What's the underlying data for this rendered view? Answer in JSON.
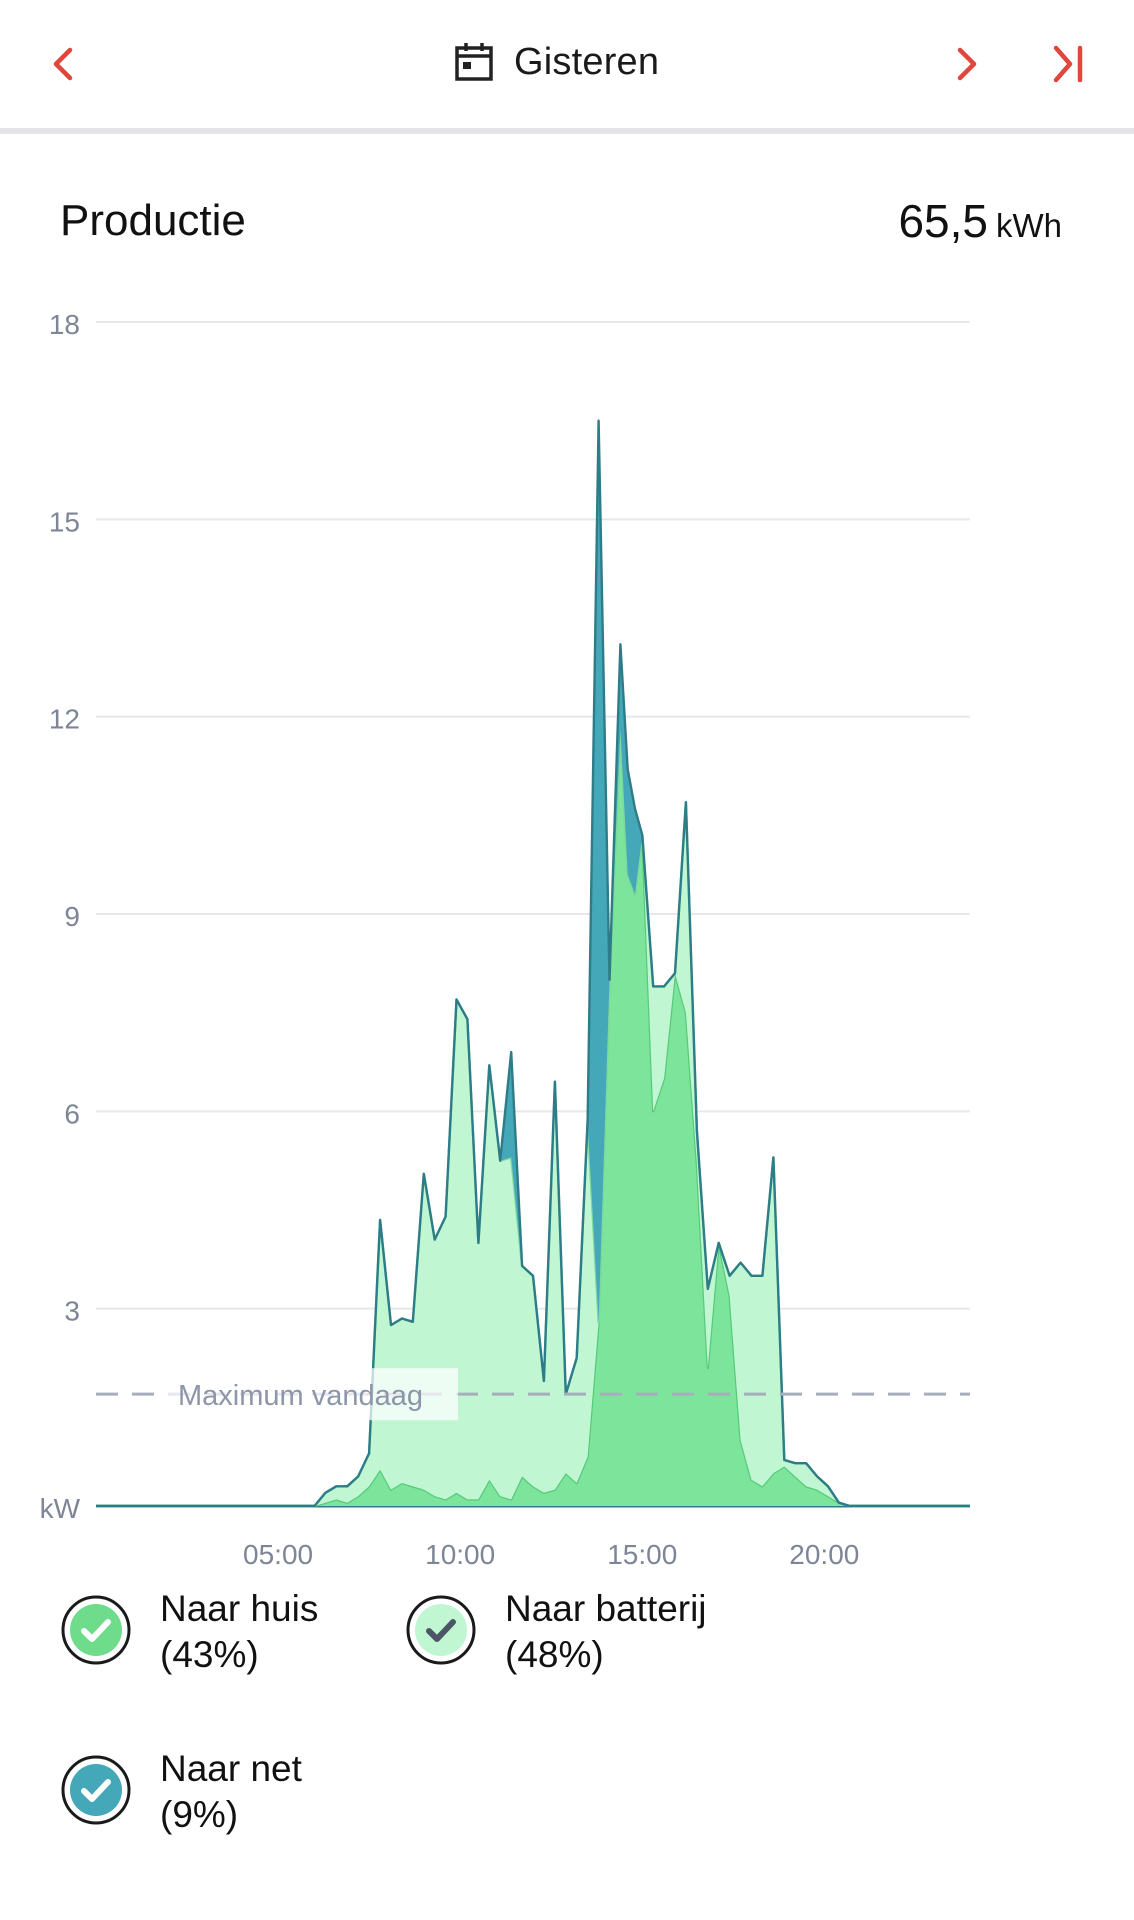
{
  "header": {
    "prev_icon": "chevron-left-icon",
    "calendar_icon": "calendar-icon",
    "date_label": "Gisteren",
    "next_icon": "chevron-right-icon",
    "last_icon": "skip-to-end-icon",
    "accent_color": "#e0463b"
  },
  "section": {
    "title": "Productie",
    "total_value": "65,5",
    "total_unit": "kWh"
  },
  "chart_data": {
    "type": "area",
    "y_unit_label": "kW",
    "y_ticks": [
      3,
      6,
      9,
      12,
      15,
      18
    ],
    "y_tick_labels": [
      "3",
      "6",
      "9",
      "12",
      "15",
      "18"
    ],
    "ylim": [
      0,
      18
    ],
    "xlim": [
      0,
      24
    ],
    "x_ticks": [
      5,
      10,
      15,
      20
    ],
    "x_tick_labels": [
      "05:00",
      "10:00",
      "15:00",
      "20:00"
    ],
    "grid": true,
    "reference_line": {
      "label": "Maximum vandaag",
      "value": 1.7,
      "color": "#a7adbd"
    },
    "x": [
      0,
      6.0,
      6.3,
      6.6,
      6.9,
      7.2,
      7.5,
      7.8,
      8.1,
      8.4,
      8.7,
      9.0,
      9.3,
      9.6,
      9.9,
      10.2,
      10.5,
      10.8,
      11.1,
      11.4,
      11.7,
      12.0,
      12.3,
      12.6,
      12.9,
      13.2,
      13.5,
      13.8,
      14.1,
      14.4,
      14.6,
      14.8,
      15.0,
      15.3,
      15.6,
      15.9,
      16.2,
      16.5,
      16.8,
      17.1,
      17.4,
      17.7,
      18.0,
      18.3,
      18.6,
      18.9,
      19.2,
      19.5,
      19.8,
      20.1,
      20.4,
      20.7,
      21.0,
      24.0
    ],
    "series": [
      {
        "name": "Naar huis (43%)",
        "color": "#7de49c",
        "stroke": "#56c97a",
        "values": [
          0,
          0,
          0.05,
          0.1,
          0.05,
          0.15,
          0.3,
          0.55,
          0.25,
          0.35,
          0.3,
          0.25,
          0.15,
          0.1,
          0.2,
          0.1,
          0.1,
          0.4,
          0.15,
          0.1,
          0.45,
          0.3,
          0.2,
          0.25,
          0.5,
          0.35,
          0.75,
          2.8,
          8.0,
          11.8,
          9.6,
          9.3,
          10.2,
          6.0,
          6.5,
          8.1,
          7.5,
          5.2,
          2.1,
          4.0,
          3.2,
          1.0,
          0.4,
          0.3,
          0.5,
          0.6,
          0.45,
          0.3,
          0.25,
          0.15,
          0.05,
          0,
          0,
          0
        ]
      },
      {
        "name": "Naar batterij (48%)",
        "color": "#c0f7d2",
        "stroke": "#7fd9a0",
        "values": [
          0,
          0,
          0.15,
          0.2,
          0.25,
          0.3,
          0.5,
          3.8,
          2.5,
          2.5,
          2.5,
          4.8,
          3.9,
          4.3,
          7.5,
          7.3,
          3.9,
          6.3,
          5.1,
          5.2,
          3.2,
          3.2,
          1.7,
          6.2,
          1.2,
          1.9,
          5.1,
          0,
          0,
          0,
          0,
          0,
          0,
          1.9,
          1.4,
          0,
          3.2,
          0.5,
          1.2,
          0,
          0.3,
          2.7,
          3.1,
          3.2,
          4.8,
          0.1,
          0.2,
          0.35,
          0.2,
          0.15,
          0,
          0,
          0,
          0
        ]
      },
      {
        "name": "Naar net (9%)",
        "color": "#45a8b8",
        "stroke": "#2e7c87",
        "values": [
          0,
          0,
          0,
          0,
          0,
          0,
          0,
          0,
          0,
          0,
          0,
          0,
          0,
          0,
          0,
          0,
          0,
          0,
          0,
          1.6,
          0,
          0,
          0,
          0,
          0,
          0,
          0,
          13.7,
          0,
          1.3,
          1.6,
          1.3,
          0,
          0,
          0,
          0,
          0,
          0,
          0,
          0,
          0,
          0,
          0,
          0,
          0,
          0,
          0,
          0,
          0,
          0,
          0,
          0,
          0,
          0
        ]
      }
    ]
  },
  "legend": {
    "items": [
      {
        "line1": "Naar huis",
        "line2": "(43%)",
        "fill": "#6fdc8c",
        "ring": "#1a1a1a",
        "check": "#ffffff",
        "icon": "check-circle-icon"
      },
      {
        "line1": "Naar batterij",
        "line2": "(48%)",
        "fill": "#c0f7d2",
        "ring": "#1a1a1a",
        "check": "#4b5566",
        "icon": "check-circle-icon"
      },
      {
        "line1": "Naar net",
        "line2": "(9%)",
        "fill": "#45a8b8",
        "ring": "#1a1a1a",
        "check": "#ffffff",
        "icon": "check-circle-icon"
      }
    ]
  }
}
